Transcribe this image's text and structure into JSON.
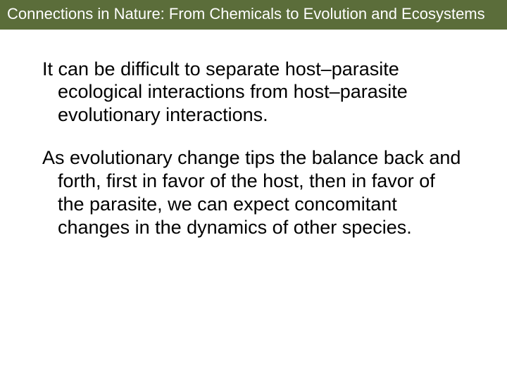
{
  "header": {
    "background_color": "#5b6d3a",
    "text_color": "#ffffff",
    "title": "Connections in Nature: From Chemicals to Evolution and Ecosystems",
    "fontsize": 22
  },
  "body": {
    "background_color": "#ffffff",
    "text_color": "#000000",
    "fontsize": 27,
    "paragraphs": [
      "It can be difficult to separate host–parasite ecological interactions from host–parasite evolutionary interactions.",
      "As evolutionary change tips the balance back and forth, first in favor of the host, then in favor of the parasite, we can expect concomitant changes in the dynamics of other species."
    ]
  }
}
